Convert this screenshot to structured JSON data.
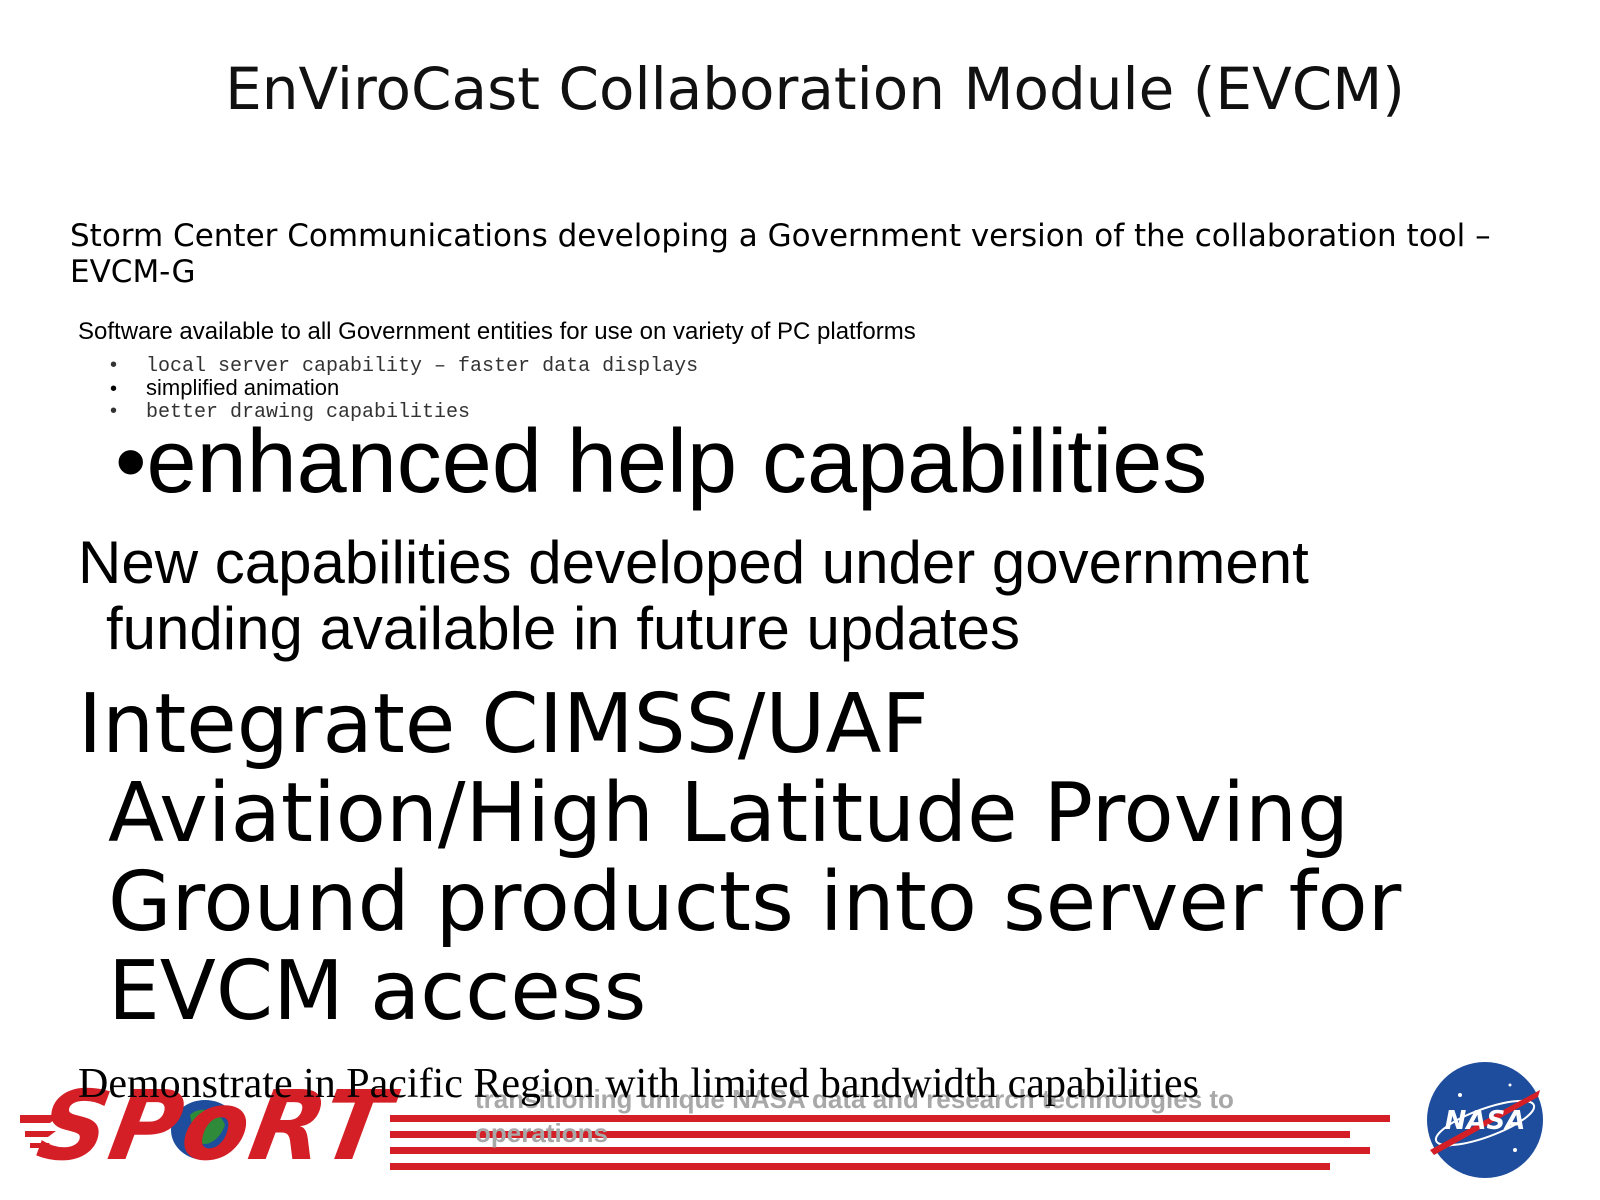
{
  "title": "EnViroCast Collaboration Module (EVCM)",
  "paragraphs": {
    "storm_center": "Storm Center Communications developing a Government version of the collaboration tool – EVCM-G",
    "software": "Software available to all Government entities for use on variety of PC platforms"
  },
  "bullets": [
    {
      "marker": "•",
      "text": "local server capability – faster data displays"
    },
    {
      "marker": "•",
      "text": "simplified animation"
    },
    {
      "marker": "•",
      "text": "better drawing capabilities"
    },
    {
      "marker": "•",
      "text": "enhanced help capabilities"
    }
  ],
  "new_capabilities": {
    "line1": "New capabilities developed under government",
    "line2": "funding available in future updates"
  },
  "integrate": {
    "line1": "Integrate CIMSS/UAF",
    "line2": "Aviation/High Latitude Proving",
    "line3": "Ground products into server for",
    "line4": "EVCM access"
  },
  "demonstrate": "Demonstrate in Pacific Region with limited bandwidth capabilities",
  "footer": {
    "logo_text": "SPoRT",
    "tagline": "transitioning unique NASA data and research technologies to operations",
    "nasa_logo_text": "NASA",
    "colors": {
      "brand_red": "#d41f26",
      "nasa_blue": "#1d4d9c",
      "tagline_gray": "#a8a8a8"
    }
  }
}
